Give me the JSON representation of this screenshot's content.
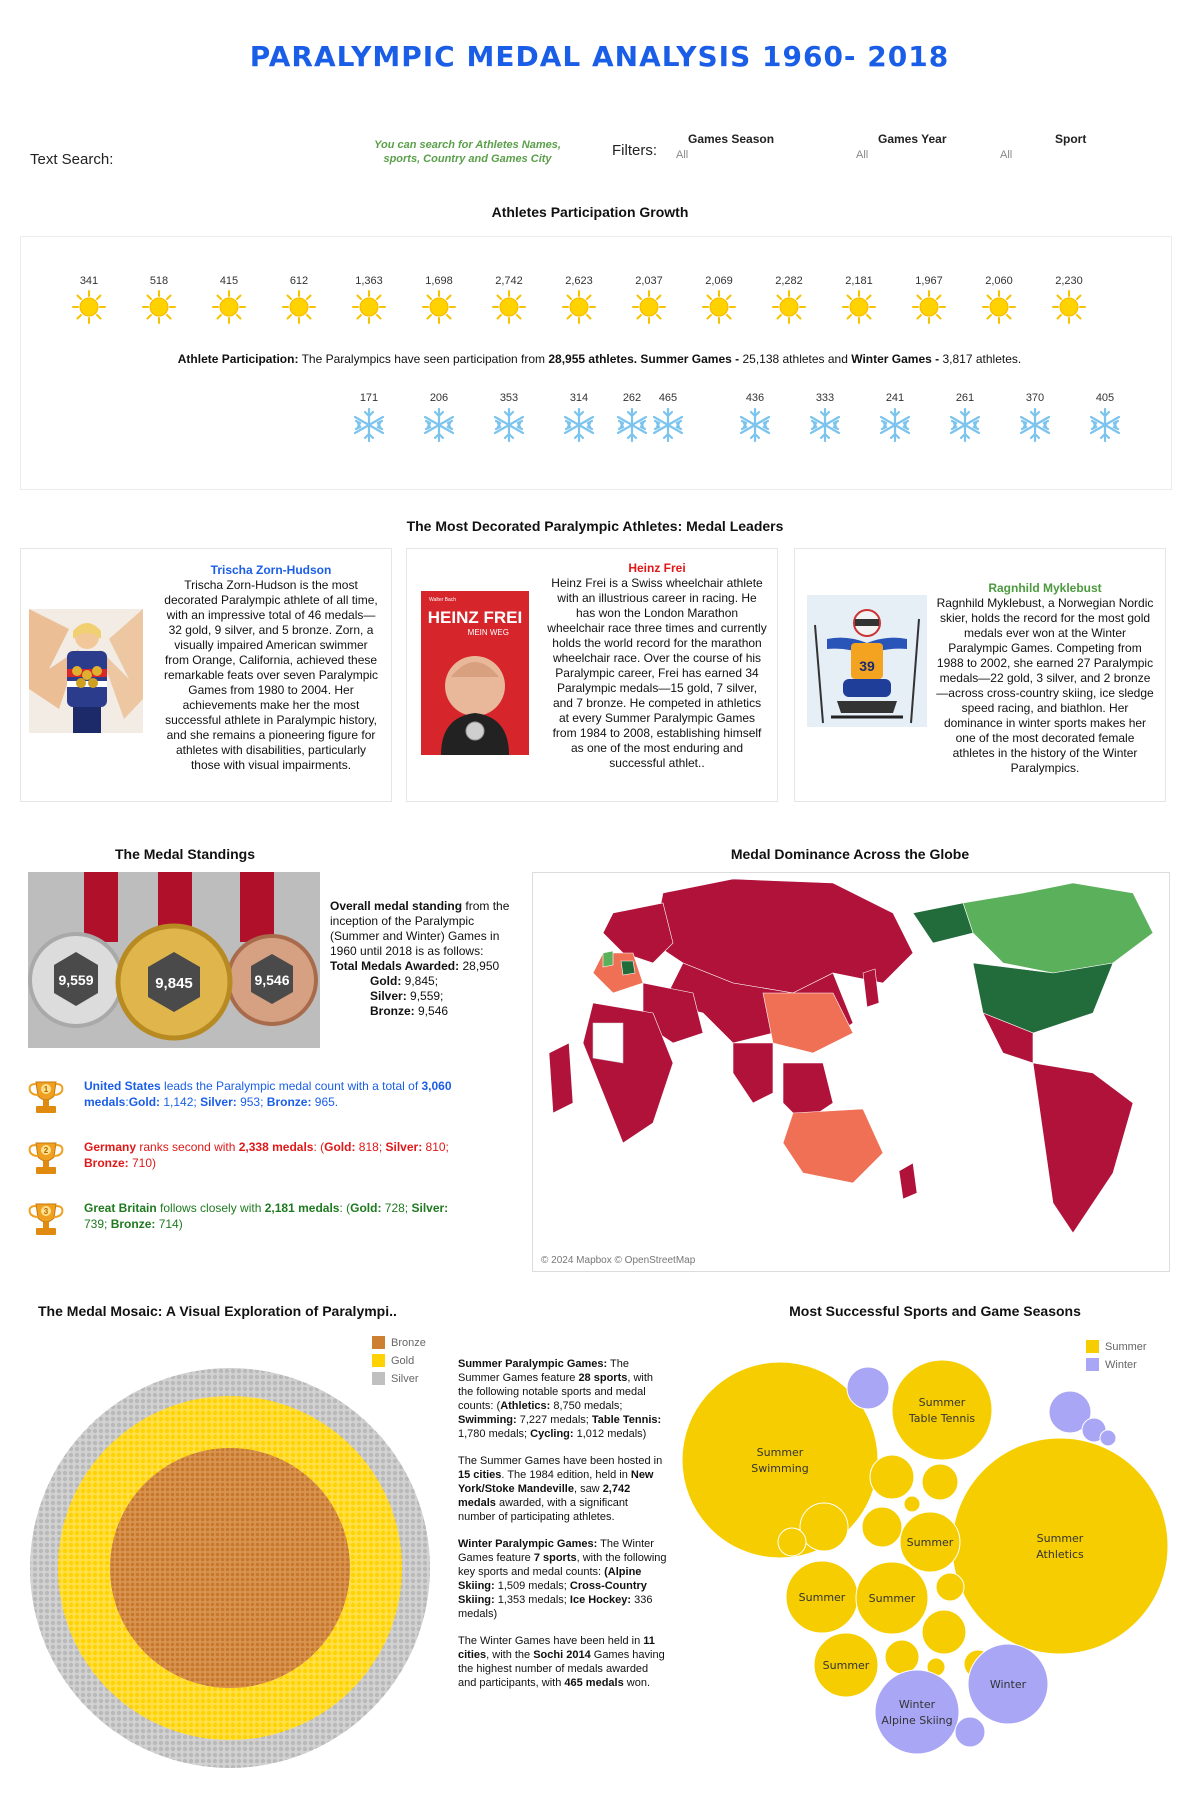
{
  "header": {
    "title": "PARALYMPIC MEDAL ANALYSIS 1960- 2018"
  },
  "filters": {
    "text_search_label": "Text Search:",
    "search_hint": "You can search for Athletes Names, sports, Country and Games City",
    "filters_label": "Filters:",
    "games_season": {
      "label": "Games Season",
      "value": "All"
    },
    "games_year": {
      "label": "Games Year",
      "value": "All"
    },
    "sport": {
      "label": "Sport",
      "value": "All"
    }
  },
  "participation": {
    "title": "Athletes Participation Growth",
    "summer_counts": [
      "341",
      "518",
      "415",
      "612",
      "1,363",
      "1,698",
      "2,742",
      "2,623",
      "2,037",
      "2,069",
      "2,282",
      "2,181",
      "1,967",
      "2,060",
      "2,230"
    ],
    "winter_counts": [
      "171",
      "206",
      "353",
      "314",
      "262",
      "465",
      "436",
      "333",
      "241",
      "261",
      "370",
      "405"
    ],
    "summary_label": "Athlete Participation:",
    "summary_text_1": " The Paralympics have seen participation from ",
    "summary_total": "28,955 athletes.",
    "summary_summer_label": " Summer Games -",
    "summary_summer": " 25,138 athletes and ",
    "summary_winter_label": "Winter Games -",
    "summary_winter": " 3,817 athletes."
  },
  "athletes": {
    "title": "The Most Decorated Paralympic Athletes: Medal Leaders",
    "cards": [
      {
        "name": "Trischa Zorn-Hudson",
        "color": "#1a5ee8",
        "text": "Trischa Zorn-Hudson is the most decorated Paralympic athlete of all time, with an impressive total of 46 medals—32 gold, 9 silver, and 5 bronze. Zorn, a visually impaired American swimmer from Orange, California, achieved these remarkable feats over seven Paralympic Games from 1980 to 2004. Her achievements make her the most successful athlete in Paralympic history, and she remains a pioneering figure for athletes with disabilities, particularly those with visual impairments."
      },
      {
        "name": "Heinz Frei",
        "color": "#e01818",
        "text": "Heinz Frei is a Swiss wheelchair athlete with an illustrious career in racing. He has won the London Marathon wheelchair race three times and currently holds the world record for the marathon wheelchair race. Over the course of his Paralympic career, Frei has earned 34 Paralympic medals—15 gold, 7 silver, and 7 bronze. He competed in athletics at every Summer Paralympic Games from 1984 to 2008, establishing himself as one of the most enduring and successful athlet..",
        "book_author": "Walter Bach",
        "book_title": "HEINZ FREI",
        "book_subtitle": "MEIN WEG"
      },
      {
        "name": "Ragnhild Myklebust",
        "color": "#4c9a3e",
        "text": "Ragnhild Myklebust, a Norwegian Nordic skier, holds the record for the most gold medals ever won at the Winter Paralympic Games. Competing from 1988 to 2002, she earned 27 Paralympic medals—22 gold, 3 silver, and 2 bronze—across cross-country skiing, ice sledge speed racing, and biathlon. Her dominance in winter sports makes her one of the most decorated female athletes in the history of the Winter Paralympics.",
        "bib": "39"
      }
    ]
  },
  "standings": {
    "title": "The Medal Standings",
    "silver_count": "9,559",
    "gold_count": "9,845",
    "bronze_count": "9,546",
    "overall_bold": "Overall medal standing",
    "overall_text": " from the inception of the Paralympic (Summer and Winter) Games  in 1960 until 2018 is as follows:",
    "total_label": "Total Medals Awarded:",
    "total_value": " 28,950",
    "gold_label": "Gold:",
    "gold_value": " 9,845;",
    "silver_label": "Silver:",
    "silver_value": " 9,559;",
    "bronze_label": "Bronze:",
    "bronze_value": " 9,546",
    "leaders": [
      {
        "rank": "1",
        "country": "United States",
        "color": "#1a5ee8",
        "t1": " leads the Paralympic medal count with a total of ",
        "total": "3,060 medals",
        "t2": ":",
        "g": "Gold:",
        "gv": " 1,142; ",
        "s": "Silver:",
        "sv": " 953; ",
        "b": "Bronze:",
        "bv": " 965."
      },
      {
        "rank": "2",
        "country": "Germany",
        "color": "#e01818",
        "t1": " ranks second with ",
        "total": "2,338 medals",
        "t2": ": (",
        "g": "Gold:",
        "gv": " 818; ",
        "s": "Silver:",
        "sv": " 810; ",
        "b": "Bronze:",
        "bv": " 710)"
      },
      {
        "rank": "3",
        "country": "Great Britain",
        "color": "#1f7a1f",
        "t1": " follows closely with ",
        "total": "2,181 medals",
        "t2": ": (",
        "g": "Gold:",
        "gv": " 728; ",
        "s": "Silver:",
        "sv": " 739; ",
        "b": "Bronze:",
        "bv": " 714)"
      }
    ]
  },
  "map": {
    "title": "Medal Dominance Across the Globe",
    "attribution": "© 2024 Mapbox © OpenStreetMap",
    "colors": {
      "dark_red": "#b0123a",
      "orange": "#f07055",
      "green": "#5bb05b",
      "dark_green": "#226b3a"
    }
  },
  "mosaic": {
    "title": "The Medal Mosaic: A Visual Exploration of Paralympi..",
    "legend": [
      {
        "label": "Bronze",
        "color": "#cd7f32"
      },
      {
        "label": "Gold",
        "color": "#ffd200"
      },
      {
        "label": "Silver",
        "color": "#c0c0c0"
      }
    ]
  },
  "games_summary": {
    "p1_label": "Summer Paralympic Games:",
    "p1_text": " The Summer Games feature ",
    "p1_sports": "28 sports",
    "p1_text2": ", with the following notable sports and medal counts: (",
    "p1_ath": "Athletics:",
    "p1_ath_v": " 8,750 medals; ",
    "p1_swim": "Swimming:",
    "p1_swim_v": " 7,227 medals; ",
    "p1_tt": "Table Tennis:",
    "p1_tt_v": " 1,780 medals; ",
    "p1_cyc": "Cycling:",
    "p1_cyc_v": " 1,012 medals)",
    "p2_text": "The Summer Games have been hosted in ",
    "p2_cities": "15 cities",
    "p2_text2": ". The 1984 edition, held in ",
    "p2_city": "New York/Stoke Mandeville",
    "p2_text3": ", saw ",
    "p2_medals": "2,742 medals",
    "p2_text4": " awarded, with a significant number of participating athletes.",
    "p3_label": "Winter Paralympic Games:",
    "p3_text": " The Winter Games feature ",
    "p3_sports": "7 sports",
    "p3_text2": ", with the following key sports and medal counts: ",
    "p3_alp": "(Alpine Skiing:",
    "p3_alp_v": " 1,509 medals; ",
    "p3_cc": "Cross-Country Skiing:",
    "p3_cc_v": " 1,353 medals; ",
    "p3_ih": "Ice Hockey:",
    "p3_ih_v": " 336 medals)",
    "p4_text": "The Winter Games have been held in ",
    "p4_cities": "11 cities",
    "p4_text2": ", with the ",
    "p4_sochi": "Sochi 2014",
    "p4_text3": " Games having the highest number of medals awarded and participants, with ",
    "p4_medals": "465 medals",
    "p4_text4": " won."
  },
  "bubbles": {
    "title": "Most Successful Sports and Game Seasons",
    "legend": [
      {
        "label": "Summer",
        "color": "#f6cd00"
      },
      {
        "label": "Winter",
        "color": "#a9a6f5"
      }
    ],
    "labels": {
      "swimming": [
        "Summer",
        "Swimming"
      ],
      "tennis": [
        "Summer",
        "Table Tennis"
      ],
      "athletics": [
        "Summer",
        "Athletics"
      ],
      "s1": "Summer",
      "s2": "Summer",
      "s3": "Summer",
      "s4": "Summer",
      "alpine": [
        "Winter",
        "Alpine Skiing"
      ],
      "w1": "Winter"
    }
  }
}
